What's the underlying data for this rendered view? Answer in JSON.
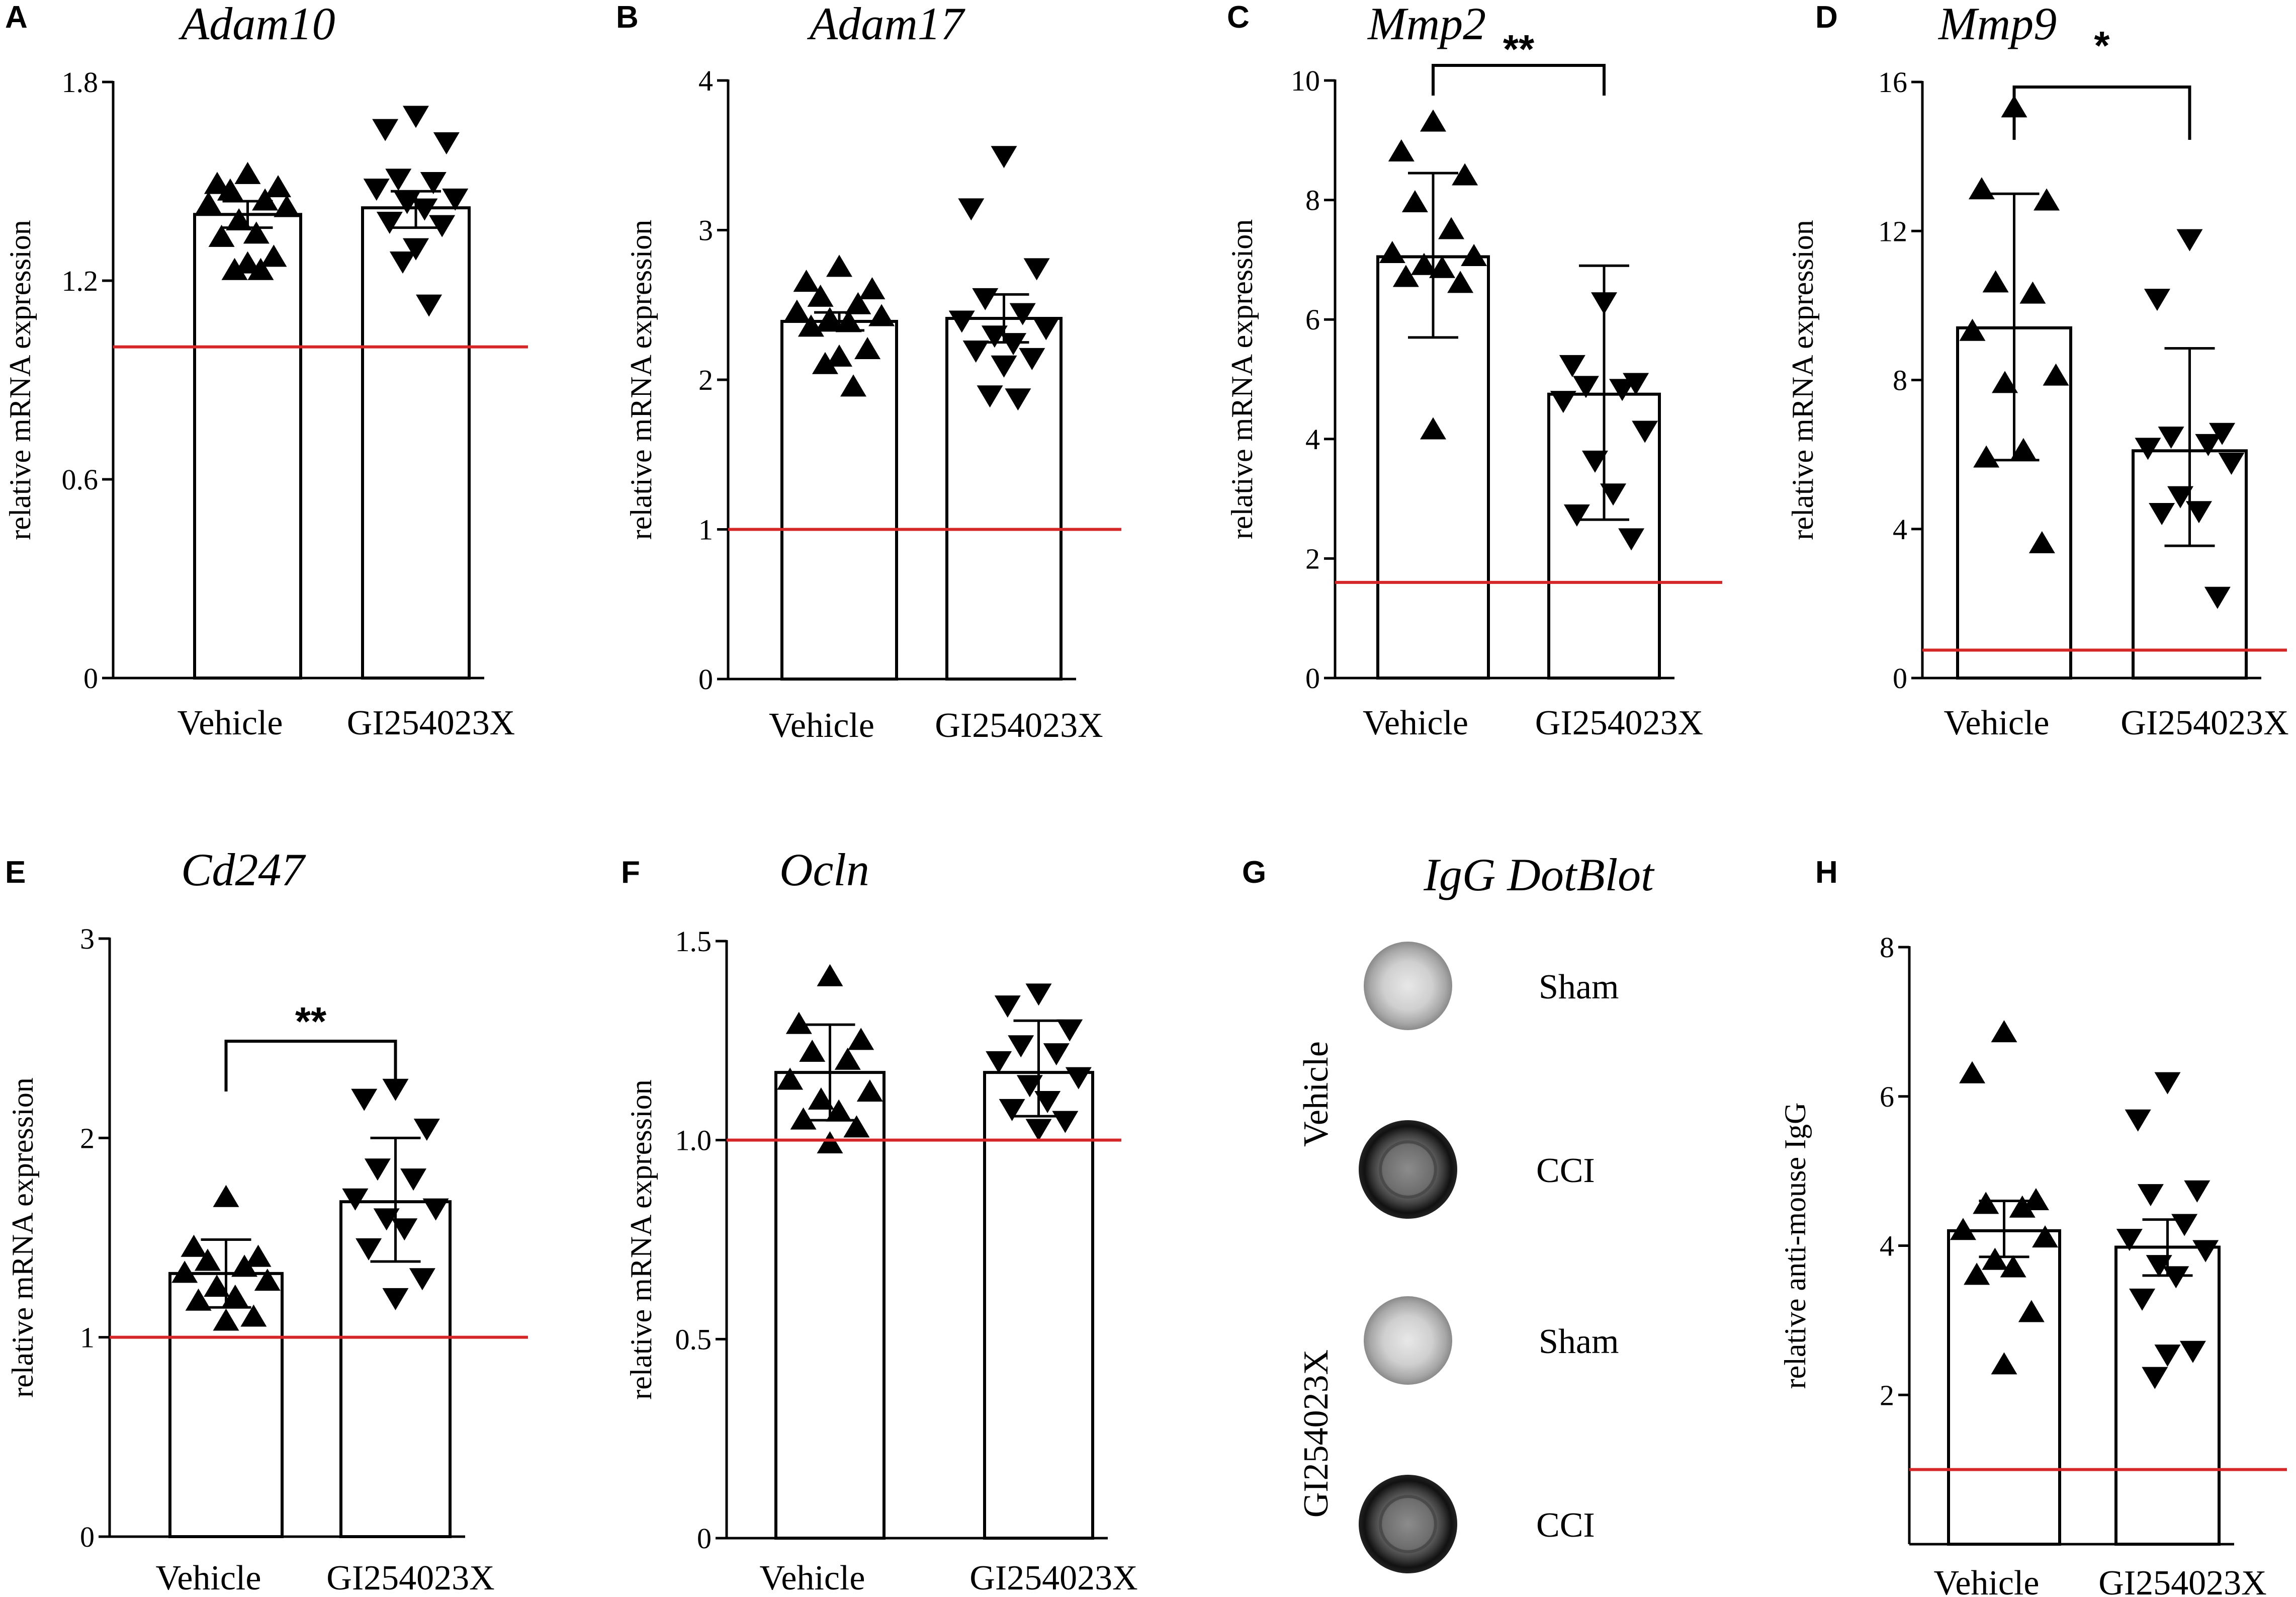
{
  "colors": {
    "bar_edge": "#000000",
    "bar_fill": "#ffffff",
    "reference_line": "#d62728",
    "point": "#000000"
  },
  "chart_data": [
    {
      "panel": "A",
      "type": "bar",
      "title": "Adam10",
      "xlabel": "",
      "ylabel": "relative mRNA expression",
      "categories": [
        "Vehicle",
        "GI254023X"
      ],
      "ylim": [
        0,
        1.8
      ],
      "yticks": [
        0,
        0.6,
        1.2,
        1.8
      ],
      "ytick_labels": [
        "0",
        "0.6",
        "1.2",
        "1.8"
      ],
      "reference_line": 1.0,
      "series": [
        {
          "name": "Vehicle",
          "mean": 1.4,
          "error_low": 1.36,
          "error_high": 1.44,
          "marker": "triangle-up",
          "points": [
            1.52,
            1.49,
            1.48,
            1.47,
            1.44,
            1.43,
            1.42,
            1.38,
            1.34,
            1.33,
            1.27,
            1.25,
            1.23,
            1.23
          ]
        },
        {
          "name": "GI254023X",
          "mean": 1.42,
          "error_low": 1.36,
          "error_high": 1.47,
          "marker": "triangle-down",
          "points": [
            1.7,
            1.66,
            1.62,
            1.51,
            1.5,
            1.48,
            1.45,
            1.44,
            1.42,
            1.38,
            1.37,
            1.3,
            1.26,
            1.13
          ]
        }
      ],
      "significance": null
    },
    {
      "panel": "B",
      "type": "bar",
      "title": "Adam17",
      "xlabel": "",
      "ylabel": "relative mRNA expression",
      "categories": [
        "Vehicle",
        "GI254023X"
      ],
      "ylim": [
        0,
        4
      ],
      "yticks": [
        0,
        1,
        2,
        3,
        4
      ],
      "ytick_labels": [
        "0",
        "1",
        "2",
        "3",
        "4"
      ],
      "reference_line": 1.0,
      "series": [
        {
          "name": "Vehicle",
          "mean": 2.39,
          "error_low": 2.33,
          "error_high": 2.45,
          "marker": "triangle-up",
          "points": [
            2.75,
            2.65,
            2.6,
            2.55,
            2.5,
            2.45,
            2.42,
            2.4,
            2.38,
            2.35,
            2.2,
            2.15,
            2.1,
            1.95
          ]
        },
        {
          "name": "GI254023X",
          "mean": 2.41,
          "error_low": 2.25,
          "error_high": 2.57,
          "marker": "triangle-down",
          "points": [
            3.5,
            3.15,
            2.75,
            2.55,
            2.45,
            2.4,
            2.35,
            2.3,
            2.25,
            2.2,
            2.15,
            2.1,
            1.9,
            1.88
          ]
        }
      ],
      "significance": null
    },
    {
      "panel": "C",
      "type": "bar",
      "title": "Mmp2",
      "xlabel": "",
      "ylabel": "relative mRNA expression",
      "categories": [
        "Vehicle",
        "GI254023X"
      ],
      "ylim": [
        0,
        10
      ],
      "yticks": [
        0,
        2,
        4,
        6,
        8,
        10
      ],
      "ytick_labels": [
        "0",
        "2",
        "4",
        "6",
        "8",
        "10"
      ],
      "reference_line": 1.6,
      "series": [
        {
          "name": "Vehicle",
          "mean": 7.05,
          "error_low": 5.7,
          "error_high": 8.45,
          "marker": "triangle-up",
          "points": [
            9.3,
            8.8,
            8.4,
            7.95,
            7.5,
            7.1,
            7.05,
            6.9,
            6.85,
            6.7,
            6.6,
            4.15
          ]
        },
        {
          "name": "GI254023X",
          "mean": 4.75,
          "error_low": 2.65,
          "error_high": 6.9,
          "marker": "triangle-down",
          "points": [
            6.3,
            5.25,
            4.95,
            4.9,
            4.85,
            4.65,
            4.15,
            3.65,
            3.1,
            2.75,
            2.35
          ]
        }
      ],
      "significance": "**"
    },
    {
      "panel": "D",
      "type": "bar",
      "title": "Mmp9",
      "xlabel": "",
      "ylabel": "relative mRNA expression",
      "categories": [
        "Vehicle",
        "GI254023X"
      ],
      "ylim": [
        0,
        16
      ],
      "yticks": [
        0,
        4,
        8,
        12,
        16
      ],
      "ytick_labels": [
        "0",
        "4",
        "8",
        "12",
        "16"
      ],
      "reference_line": 0.75,
      "series": [
        {
          "name": "Vehicle",
          "mean": 9.4,
          "error_low": 5.85,
          "error_high": 13.0,
          "marker": "triangle-up",
          "points": [
            15.3,
            13.1,
            12.8,
            10.6,
            10.3,
            9.3,
            8.1,
            7.9,
            6.1,
            5.9,
            3.6
          ]
        },
        {
          "name": "GI254023X",
          "mean": 6.1,
          "error_low": 3.55,
          "error_high": 8.85,
          "marker": "triangle-down",
          "points": [
            11.8,
            10.2,
            6.6,
            6.5,
            6.3,
            6.2,
            5.8,
            4.9,
            4.5,
            4.45,
            2.2
          ]
        }
      ],
      "significance": "*"
    },
    {
      "panel": "E",
      "type": "bar",
      "title": "Cd247",
      "xlabel": "",
      "ylabel": "relative mRNA expression",
      "categories": [
        "Vehicle",
        "GI254023X"
      ],
      "ylim": [
        0,
        3
      ],
      "yticks": [
        0,
        1,
        2,
        3
      ],
      "ytick_labels": [
        "0",
        "1",
        "2",
        "3"
      ],
      "reference_line": 1.0,
      "series": [
        {
          "name": "Vehicle",
          "mean": 1.32,
          "error_low": 1.15,
          "error_high": 1.49,
          "marker": "triangle-up",
          "points": [
            1.7,
            1.45,
            1.4,
            1.38,
            1.35,
            1.32,
            1.28,
            1.25,
            1.2,
            1.18,
            1.1,
            1.08
          ]
        },
        {
          "name": "GI254023X",
          "mean": 1.68,
          "error_low": 1.38,
          "error_high": 2.0,
          "marker": "triangle-down",
          "points": [
            2.25,
            2.2,
            2.05,
            1.85,
            1.8,
            1.7,
            1.65,
            1.6,
            1.55,
            1.45,
            1.3,
            1.2
          ]
        }
      ],
      "significance": "**"
    },
    {
      "panel": "F",
      "type": "bar",
      "title": "Ocln",
      "xlabel": "",
      "ylabel": "relative mRNA expression",
      "categories": [
        "Vehicle",
        "GI254023X"
      ],
      "ylim": [
        0,
        1.5
      ],
      "yticks": [
        0,
        0.5,
        1.0,
        1.5
      ],
      "ytick_labels": [
        "0",
        "0.5",
        "1.0",
        "1.5"
      ],
      "reference_line": 1.0,
      "series": [
        {
          "name": "Vehicle",
          "mean": 1.17,
          "error_low": 1.05,
          "error_high": 1.29,
          "marker": "triangle-up",
          "points": [
            1.41,
            1.29,
            1.25,
            1.22,
            1.2,
            1.15,
            1.12,
            1.1,
            1.07,
            1.05,
            1.03,
            0.99
          ]
        },
        {
          "name": "GI254023X",
          "mean": 1.17,
          "error_low": 1.06,
          "error_high": 1.3,
          "marker": "triangle-down",
          "points": [
            1.37,
            1.34,
            1.28,
            1.24,
            1.22,
            1.2,
            1.16,
            1.14,
            1.1,
            1.08,
            1.05,
            1.03
          ]
        }
      ],
      "significance": null
    },
    {
      "panel": "H",
      "type": "bar",
      "title": "",
      "xlabel": "",
      "ylabel": "relative anti-mouse IgG",
      "categories": [
        "Vehicle",
        "GI254023X"
      ],
      "ylim": [
        0,
        8
      ],
      "yticks": [
        2,
        4,
        6,
        8
      ],
      "ytick_labels": [
        "2",
        "4",
        "6",
        "8"
      ],
      "reference_line": 1.0,
      "series": [
        {
          "name": "Vehicle",
          "mean": 4.2,
          "error_low": 3.85,
          "error_high": 4.6,
          "marker": "triangle-up",
          "points": [
            6.85,
            6.3,
            4.6,
            4.55,
            4.5,
            4.2,
            4.1,
            3.8,
            3.7,
            3.6,
            3.1,
            2.4
          ]
        },
        {
          "name": "GI254023X",
          "mean": 3.98,
          "error_low": 3.6,
          "error_high": 4.35,
          "marker": "triangle-down",
          "points": [
            6.2,
            5.7,
            4.75,
            4.7,
            4.3,
            4.1,
            3.95,
            3.75,
            3.6,
            3.3,
            2.6,
            2.55,
            2.25
          ]
        }
      ],
      "significance": null
    }
  ],
  "dot_blot": {
    "panel": "G",
    "title": "IgG DotBlot",
    "group_labels": [
      "Vehicle",
      "GI254023X"
    ],
    "blots": [
      {
        "label": "Sham",
        "group": "Vehicle",
        "intensity": "light"
      },
      {
        "label": "CCI",
        "group": "Vehicle",
        "intensity": "dark"
      },
      {
        "label": "Sham",
        "group": "GI254023X",
        "intensity": "light"
      },
      {
        "label": "CCI",
        "group": "GI254023X",
        "intensity": "dark"
      }
    ]
  }
}
